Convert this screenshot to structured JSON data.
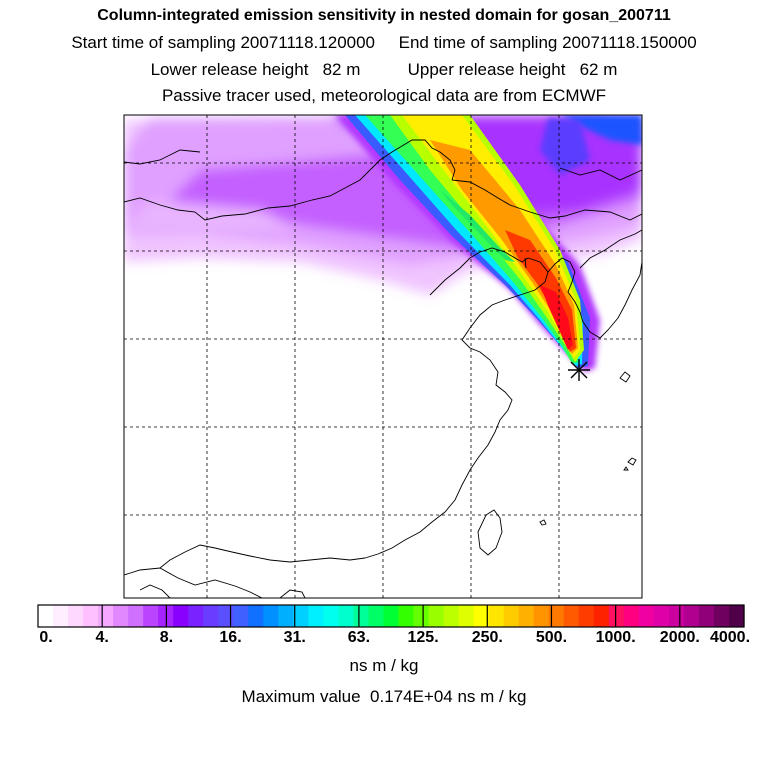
{
  "header": {
    "title": "Column-integrated emission sensitivity in nested domain for gosan_200711",
    "sampling_line": "Start time of sampling 20071118.120000     End time of sampling 20071118.150000",
    "release_line": "Lower release height   82 m          Upper release height   62 m",
    "tracer_line": "Passive tracer used, meteorological data are from ECMWF"
  },
  "legend": {
    "tick_labels": [
      "0.",
      "4.",
      "8.",
      "16.",
      "31.",
      "63.",
      "125.",
      "250.",
      "500.",
      "1000.",
      "2000.",
      "4000."
    ],
    "unit": "ns m / kg",
    "max_line": "Maximum value  0.174E+04 ns m / kg",
    "colors": [
      "#ffffff",
      "#ffeeff",
      "#ffd8ff",
      "#ffc0ff",
      "#f4a8ff",
      "#e288ff",
      "#d070ff",
      "#bb44ff",
      "#a622ff",
      "#8a00ff",
      "#7a22ff",
      "#6a3cff",
      "#5a50ff",
      "#4060ff",
      "#1070ff",
      "#0090ff",
      "#00b0ff",
      "#00d0ff",
      "#00f0ff",
      "#00ffee",
      "#00ffcc",
      "#00ff99",
      "#00ff66",
      "#00ff33",
      "#33ff00",
      "#66ff00",
      "#99ff00",
      "#bbff00",
      "#ddff00",
      "#ffff00",
      "#ffe600",
      "#ffcc00",
      "#ffb000",
      "#ff9400",
      "#ff7800",
      "#ff5a00",
      "#ff3c00",
      "#ff2200",
      "#ff1060",
      "#ff0080",
      "#f000a0",
      "#e000a8",
      "#cc009f",
      "#b00090",
      "#900078",
      "#700060",
      "#500048"
    ]
  },
  "map": {
    "receptor_icon": "asterisk-icon",
    "plume_colors": {
      "outer": "#bf33ff",
      "blue": "#3a5cff",
      "cyan": "#00e8ff",
      "green": "#33ff55",
      "yellow": "#ffee00",
      "orange": "#ff9a00",
      "red": "#ff1a00"
    }
  }
}
